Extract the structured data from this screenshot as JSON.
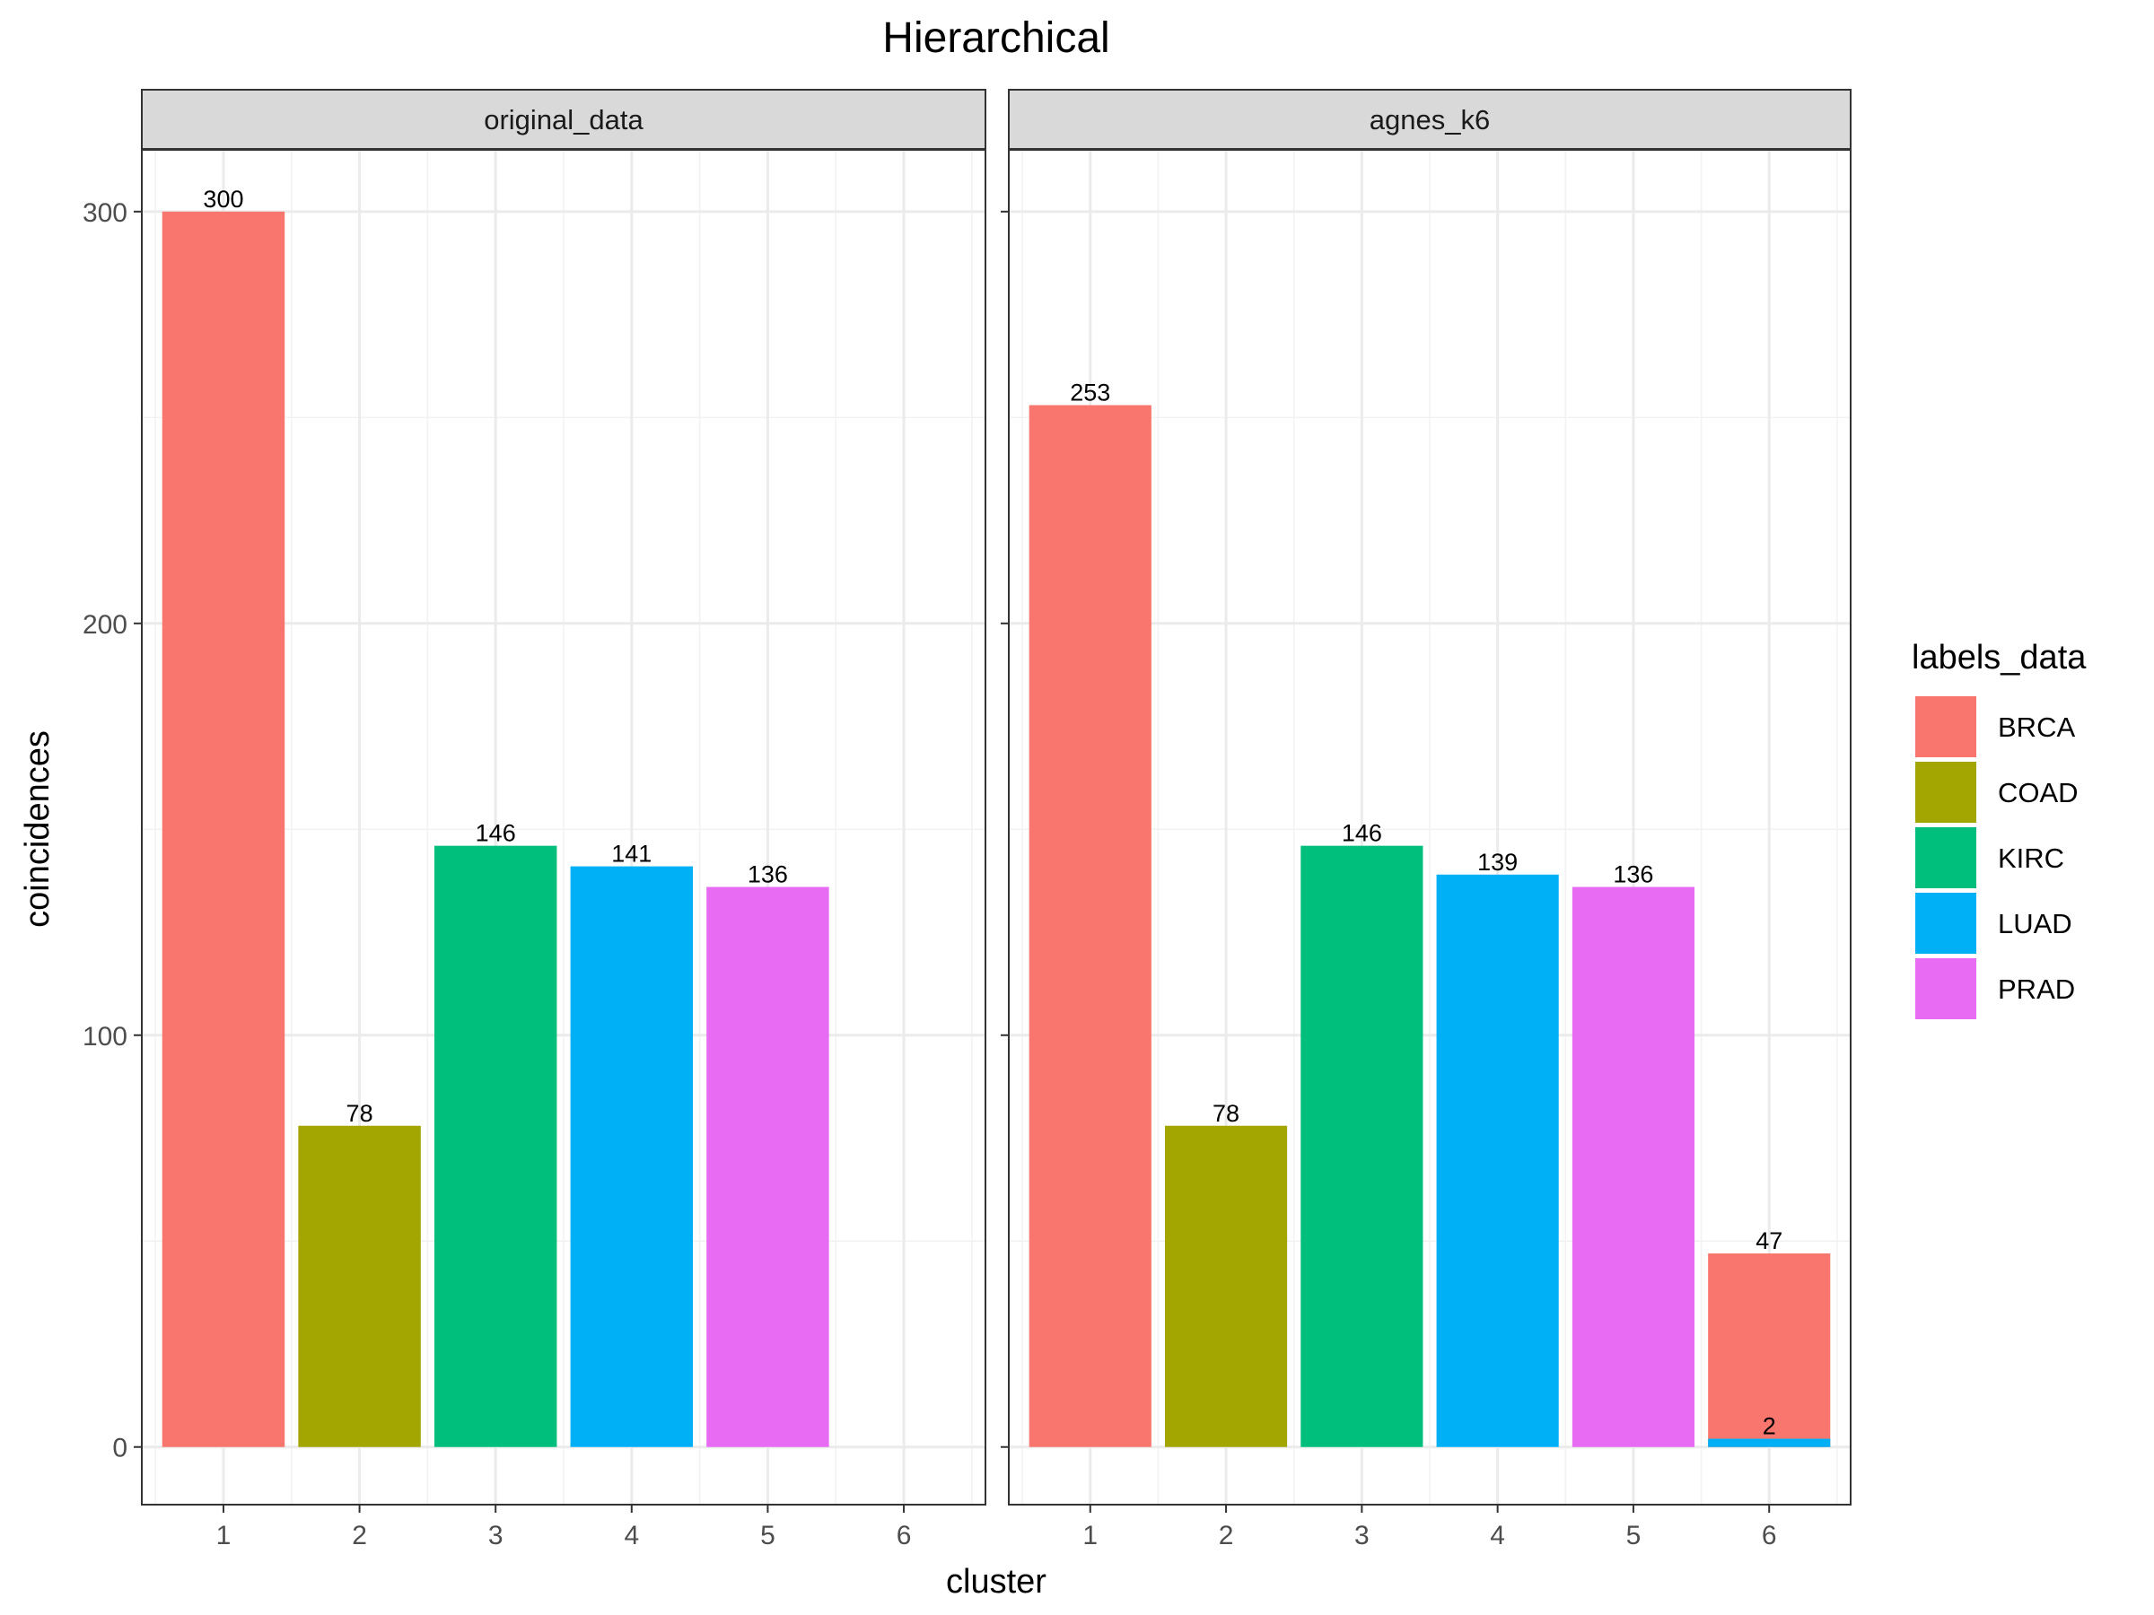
{
  "chart_data": {
    "type": "bar",
    "title": "Hierarchical",
    "xlabel": "cluster",
    "ylabel": "coincidences",
    "x_ticks": [
      "1",
      "2",
      "3",
      "4",
      "5",
      "6"
    ],
    "y_ticks": [
      0,
      100,
      200,
      300
    ],
    "ylim": [
      -14,
      315
    ],
    "xlim": [
      0.4,
      6.6
    ],
    "grid": true,
    "legend": {
      "title": "labels_data",
      "position": "right",
      "entries": [
        {
          "name": "BRCA",
          "color": "#F8766D"
        },
        {
          "name": "COAD",
          "color": "#A3A500"
        },
        {
          "name": "KIRC",
          "color": "#00BF7D"
        },
        {
          "name": "LUAD",
          "color": "#00B0F6"
        },
        {
          "name": "PRAD",
          "color": "#E76BF3"
        }
      ]
    },
    "panels": [
      {
        "name": "original_data",
        "bars": [
          {
            "cluster": 1,
            "label": "BRCA",
            "value": 300
          },
          {
            "cluster": 2,
            "label": "COAD",
            "value": 78
          },
          {
            "cluster": 3,
            "label": "KIRC",
            "value": 146
          },
          {
            "cluster": 4,
            "label": "LUAD",
            "value": 141
          },
          {
            "cluster": 5,
            "label": "PRAD",
            "value": 136
          }
        ]
      },
      {
        "name": "agnes_k6",
        "bars": [
          {
            "cluster": 1,
            "label": "BRCA",
            "value": 253
          },
          {
            "cluster": 2,
            "label": "COAD",
            "value": 78
          },
          {
            "cluster": 3,
            "label": "KIRC",
            "value": 146
          },
          {
            "cluster": 4,
            "label": "LUAD",
            "value": 139
          },
          {
            "cluster": 5,
            "label": "PRAD",
            "value": 136
          },
          {
            "cluster": 6,
            "label": "BRCA",
            "value": 47
          },
          {
            "cluster": 6,
            "label": "LUAD",
            "value": 2
          }
        ]
      }
    ]
  }
}
